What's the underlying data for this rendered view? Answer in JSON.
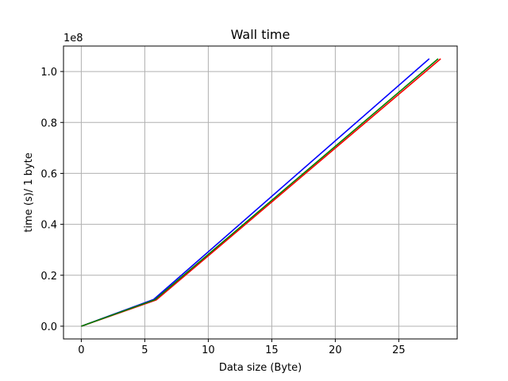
{
  "chart_data": {
    "type": "line",
    "title": "Wall time",
    "xlabel": "Data size (Byte)",
    "ylabel": "time (s)/ 1 byte",
    "offset_text": "1e8",
    "xlim": [
      -1.4,
      29.6
    ],
    "ylim": [
      -0.05,
      1.1
    ],
    "x_ticks": [
      0,
      5,
      10,
      15,
      20,
      25
    ],
    "x_tick_labels": [
      "0",
      "5",
      "10",
      "15",
      "20",
      "25"
    ],
    "y_ticks": [
      0.0,
      0.2,
      0.4,
      0.6,
      0.8,
      1.0
    ],
    "y_tick_labels": [
      "0.0",
      "0.2",
      "0.4",
      "0.6",
      "0.8",
      "1.0"
    ],
    "grid": true,
    "series": [
      {
        "color": "#0000ff",
        "x": [
          0,
          5.7,
          27.4
        ],
        "y": [
          0.0,
          0.105,
          1.05
        ]
      },
      {
        "color": "#ff0000",
        "x": [
          0,
          5.9,
          28.3
        ],
        "y": [
          0.0,
          0.103,
          1.05
        ]
      },
      {
        "color": "#008000",
        "x": [
          0,
          5.8,
          28.1
        ],
        "y": [
          0.0,
          0.104,
          1.05
        ]
      }
    ]
  }
}
